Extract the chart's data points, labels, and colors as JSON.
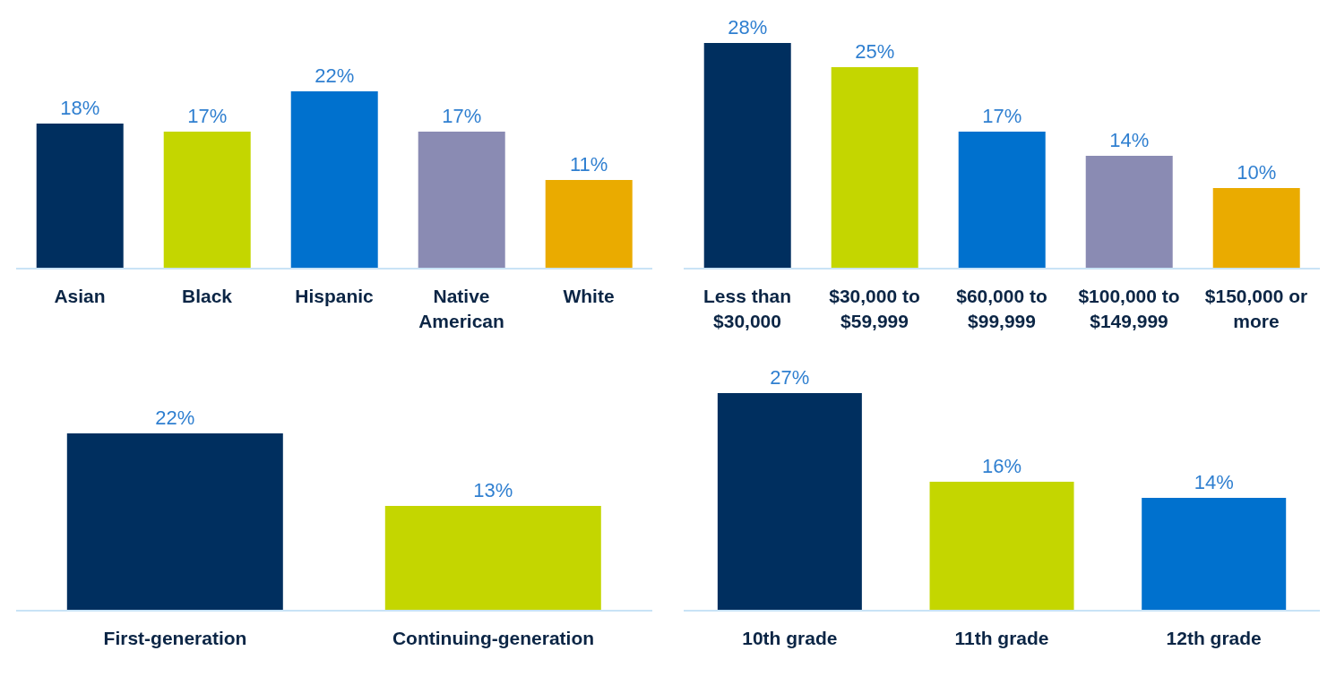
{
  "chart_data": [
    {
      "type": "bar",
      "categories": [
        "Asian",
        "Black",
        "Hispanic",
        "Native American",
        "White"
      ],
      "values": [
        18,
        17,
        22,
        17,
        11
      ],
      "colors": [
        "#002f5f",
        "#c4d600",
        "#0071ce",
        "#8a8bb3",
        "#eaab00"
      ],
      "value_labels": [
        "18%",
        "17%",
        "22%",
        "17%",
        "11%"
      ],
      "grid": false,
      "legend": false
    },
    {
      "type": "bar",
      "categories": [
        "Less than $30,000",
        "$30,000 to $59,999",
        "$60,000 to $99,999",
        "$100,000 to $149,999",
        "$150,000 or more"
      ],
      "values": [
        28,
        25,
        17,
        14,
        10
      ],
      "colors": [
        "#002f5f",
        "#c4d600",
        "#0071ce",
        "#8a8bb3",
        "#eaab00"
      ],
      "value_labels": [
        "28%",
        "25%",
        "17%",
        "14%",
        "10%"
      ],
      "grid": false,
      "legend": false
    },
    {
      "type": "bar",
      "categories": [
        "First-generation",
        "Continuing-generation"
      ],
      "values": [
        22,
        13
      ],
      "colors": [
        "#002f5f",
        "#c4d600"
      ],
      "value_labels": [
        "22%",
        "13%"
      ],
      "grid": false,
      "legend": false
    },
    {
      "type": "bar",
      "categories": [
        "10th grade",
        "11th grade",
        "12th grade"
      ],
      "values": [
        27,
        16,
        14
      ],
      "colors": [
        "#002f5f",
        "#c4d600",
        "#0071ce"
      ],
      "value_labels": [
        "27%",
        "16%",
        "14%"
      ],
      "grid": false,
      "legend": false
    }
  ]
}
